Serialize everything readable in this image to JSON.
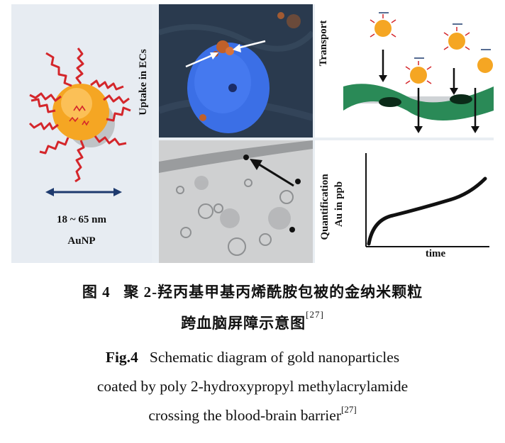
{
  "figure": {
    "panel_a": {
      "size_label": "18 ~ 65 nm",
      "particle_label": "AuNP"
    },
    "panel_uptake": {
      "side_label": "Uptake in ECs"
    },
    "panel_transport": {
      "side_label": "Transport"
    },
    "panel_quant": {
      "side_label_1": "Quantification",
      "side_label_2": "Au in ppb",
      "x_label": "time"
    }
  },
  "caption": {
    "cn_prefix": "图 4",
    "cn_line1": "聚 2-羟丙基甲基丙烯酰胺包被的金纳米颗粒",
    "cn_line2": "跨血脑屏障示意图",
    "cn_ref": "[27]",
    "en_prefix": "Fig.4",
    "en_line1": "Schematic diagram of gold nanoparticles",
    "en_line2": "coated by poly 2-hydroxypropyl methylacrylamide",
    "en_line3": "crossing the blood-brain barrier",
    "en_ref": "[27]"
  },
  "colors": {
    "gold": "#f5a623",
    "polymer": "#d4262b",
    "nucleus": "#3f6fe0",
    "vessel": "#1f7a4a"
  }
}
